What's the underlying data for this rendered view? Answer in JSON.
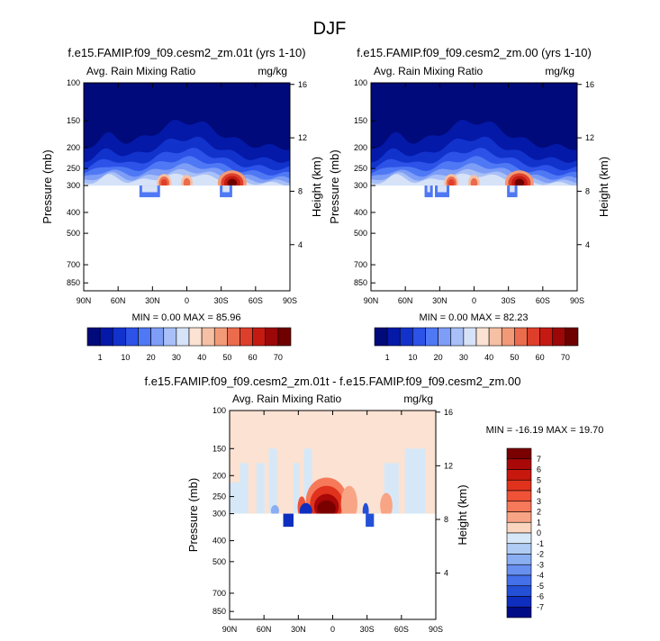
{
  "title": "DJF",
  "chart_data": [
    {
      "type": "heatmap",
      "title": "f.e15.FAMIP.f09_f09.cesm2_zm.01t (yrs 1-10)",
      "subtitle_left": "Avg. Rain Mixing Ratio",
      "subtitle_right": "mg/kg",
      "ylabel": "Pressure (mb)",
      "ylabel_right": "Height (km)",
      "x_ticks": [
        "90N",
        "60N",
        "30N",
        "0",
        "30S",
        "60S",
        "90S"
      ],
      "y_ticks": [
        "100",
        "150",
        "200",
        "250",
        "300",
        "400",
        "500",
        "700",
        "850"
      ],
      "y_ticks_right": [
        "16",
        "12",
        "8",
        "4"
      ],
      "stats": "MIN =  0.00  MAX = 85.96",
      "colorbar_labels": [
        "1",
        "10",
        "20",
        "30",
        "40",
        "50",
        "60",
        "70"
      ],
      "colorbar_colors": [
        "#000a7a",
        "#0419a8",
        "#1232cc",
        "#2c52e8",
        "#4f78f5",
        "#7d9df7",
        "#a8c0f7",
        "#d6e2f7",
        "#fbe2d2",
        "#f6c0a4",
        "#f29a78",
        "#ea6c4d",
        "#de3f2a",
        "#c41a12",
        "#9c0808",
        "#6e0000"
      ],
      "y_range_mb": [
        100,
        925
      ],
      "field_note": "stratified rain mixing ratio, values only above the 300 mb level and in two small patches near 330 mb"
    },
    {
      "type": "heatmap",
      "title": "f.e15.FAMIP.f09_f09.cesm2_zm.00 (yrs 1-10)",
      "subtitle_left": "Avg. Rain Mixing Ratio",
      "subtitle_right": "mg/kg",
      "ylabel": "Pressure (mb)",
      "ylabel_right": "Height (km)",
      "x_ticks": [
        "90N",
        "60N",
        "30N",
        "0",
        "30S",
        "60S",
        "90S"
      ],
      "y_ticks": [
        "100",
        "150",
        "200",
        "250",
        "300",
        "400",
        "500",
        "700",
        "850"
      ],
      "y_ticks_right": [
        "16",
        "12",
        "8",
        "4"
      ],
      "stats": "MIN =  0.00  MAX = 82.23",
      "colorbar_labels": [
        "1",
        "10",
        "20",
        "30",
        "40",
        "50",
        "60",
        "70"
      ],
      "colorbar_colors": [
        "#000a7a",
        "#0419a8",
        "#1232cc",
        "#2c52e8",
        "#4f78f5",
        "#7d9df7",
        "#a8c0f7",
        "#d6e2f7",
        "#fbe2d2",
        "#f6c0a4",
        "#f29a78",
        "#ea6c4d",
        "#de3f2a",
        "#c41a12",
        "#9c0808",
        "#6e0000"
      ],
      "y_range_mb": [
        100,
        925
      ]
    },
    {
      "type": "heatmap",
      "title": "f.e15.FAMIP.f09_f09.cesm2_zm.01t - f.e15.FAMIP.f09_f09.cesm2_zm.00",
      "subtitle_left": "Avg. Rain Mixing Ratio",
      "subtitle_right": "mg/kg",
      "ylabel": "Pressure (mb)",
      "ylabel_right": "Height (km)",
      "x_ticks": [
        "90N",
        "60N",
        "30N",
        "0",
        "30S",
        "60S",
        "90S"
      ],
      "y_ticks": [
        "100",
        "150",
        "200",
        "250",
        "300",
        "400",
        "500",
        "700",
        "850"
      ],
      "y_ticks_right": [
        "16",
        "12",
        "8",
        "4"
      ],
      "stats": "MIN = -16.19  MAX =  19.70",
      "colorbar_labels": [
        "7",
        "6",
        "5",
        "4",
        "3",
        "2",
        "1",
        "0",
        "-1",
        "-2",
        "-3",
        "-4",
        "-5",
        "-6",
        "-7"
      ],
      "colorbar_colors": [
        "#7a0000",
        "#a80808",
        "#c8180e",
        "#e0321c",
        "#ef5236",
        "#f6795a",
        "#f8a585",
        "#fad6c0",
        "#d6e8f8",
        "#b0ccf4",
        "#8aaef2",
        "#6890f0",
        "#4470ea",
        "#2450d8",
        "#0e2ec0",
        "#000c86"
      ],
      "y_range_mb": [
        100,
        925
      ]
    }
  ]
}
